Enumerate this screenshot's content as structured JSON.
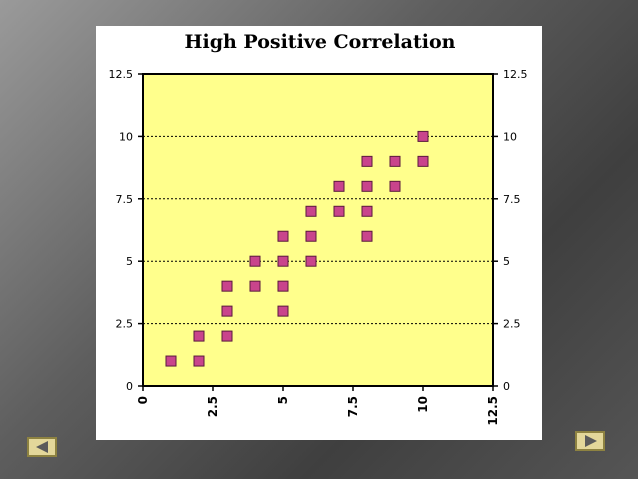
{
  "navigation": {
    "prev_icon": "triangle-left-icon",
    "next_icon": "triangle-right-icon",
    "button_fill": "#e3d79a",
    "button_border": "#8d8241",
    "arrow_color": "#5a5a5a"
  },
  "chart_data": {
    "type": "scatter",
    "title": "High Positive Correlation",
    "xlabel": "",
    "ylabel": "",
    "xlim": [
      0,
      12.5
    ],
    "ylim": [
      0,
      12.5
    ],
    "x_ticks": [
      "0",
      "2.5",
      "5",
      "7.5",
      "10",
      "12.5"
    ],
    "y_ticks": [
      "0",
      "2.5",
      "5",
      "7.5",
      "10",
      "12.5"
    ],
    "grid": "horizontal dotted",
    "legend": "none",
    "right_axis_mirrored": true,
    "colors": {
      "plot_background": "#ffff8c",
      "marker_fill": "#c9448c",
      "marker_edge": "#5a1a3c",
      "panel_background": "#ffffff"
    },
    "points": [
      {
        "x": 1,
        "y": 1
      },
      {
        "x": 2,
        "y": 1
      },
      {
        "x": 2,
        "y": 2
      },
      {
        "x": 3,
        "y": 2
      },
      {
        "x": 3,
        "y": 3
      },
      {
        "x": 3,
        "y": 4
      },
      {
        "x": 4,
        "y": 4
      },
      {
        "x": 4,
        "y": 5
      },
      {
        "x": 5,
        "y": 3
      },
      {
        "x": 5,
        "y": 4
      },
      {
        "x": 5,
        "y": 5
      },
      {
        "x": 5,
        "y": 6
      },
      {
        "x": 6,
        "y": 5
      },
      {
        "x": 6,
        "y": 6
      },
      {
        "x": 6,
        "y": 7
      },
      {
        "x": 7,
        "y": 7
      },
      {
        "x": 7,
        "y": 8
      },
      {
        "x": 8,
        "y": 6
      },
      {
        "x": 8,
        "y": 7
      },
      {
        "x": 8,
        "y": 8
      },
      {
        "x": 8,
        "y": 9
      },
      {
        "x": 9,
        "y": 8
      },
      {
        "x": 9,
        "y": 9
      },
      {
        "x": 10,
        "y": 9
      },
      {
        "x": 10,
        "y": 10
      }
    ]
  }
}
